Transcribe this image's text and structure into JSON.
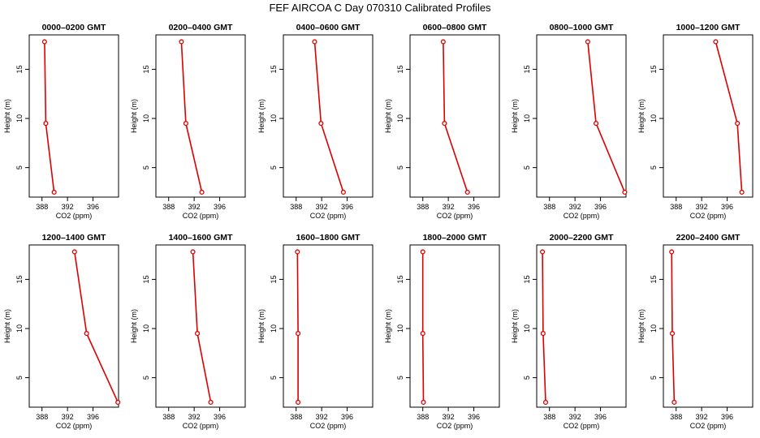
{
  "title": "FEF AIRCOA C  Day 070310  Calibrated Profiles",
  "colors": {
    "line": "#dd0000",
    "marker": "#dd0000",
    "axis": "#000000"
  },
  "chart_data": {
    "type": "line",
    "layout": {
      "rows": 2,
      "cols": 6
    },
    "xlabel": "CO2 (ppm)",
    "ylabel": "Height (m)",
    "xlim": [
      386,
      400
    ],
    "ylim": [
      2,
      18.5
    ],
    "xticks": [
      388,
      392,
      396
    ],
    "yticks": [
      5,
      10,
      15
    ],
    "heights": [
      2.5,
      9.5,
      17.8
    ],
    "panels": [
      {
        "title": "0000–0200 GMT",
        "co2": [
          389.9,
          388.6,
          388.4
        ]
      },
      {
        "title": "0200–0400 GMT",
        "co2": [
          393.2,
          390.7,
          390.0
        ]
      },
      {
        "title": "0400–0600 GMT",
        "co2": [
          395.4,
          391.9,
          390.9
        ]
      },
      {
        "title": "0600–0800 GMT",
        "co2": [
          395.0,
          391.4,
          391.2
        ]
      },
      {
        "title": "0800–1000 GMT",
        "co2": [
          399.8,
          395.3,
          394.0
        ]
      },
      {
        "title": "1000–1200 GMT",
        "co2": [
          398.3,
          397.6,
          394.2
        ]
      },
      {
        "title": "1200–1400 GMT",
        "co2": [
          399.9,
          395.0,
          393.1
        ]
      },
      {
        "title": "1400–1600 GMT",
        "co2": [
          394.6,
          392.5,
          391.8
        ]
      },
      {
        "title": "1600–1800 GMT",
        "co2": [
          388.3,
          388.3,
          388.2
        ]
      },
      {
        "title": "1800–2000 GMT",
        "co2": [
          388.1,
          388.0,
          388.0
        ]
      },
      {
        "title": "2000–2200 GMT",
        "co2": [
          387.4,
          387.0,
          386.9
        ]
      },
      {
        "title": "2200–2400 GMT",
        "co2": [
          387.7,
          387.4,
          387.3
        ]
      }
    ]
  }
}
